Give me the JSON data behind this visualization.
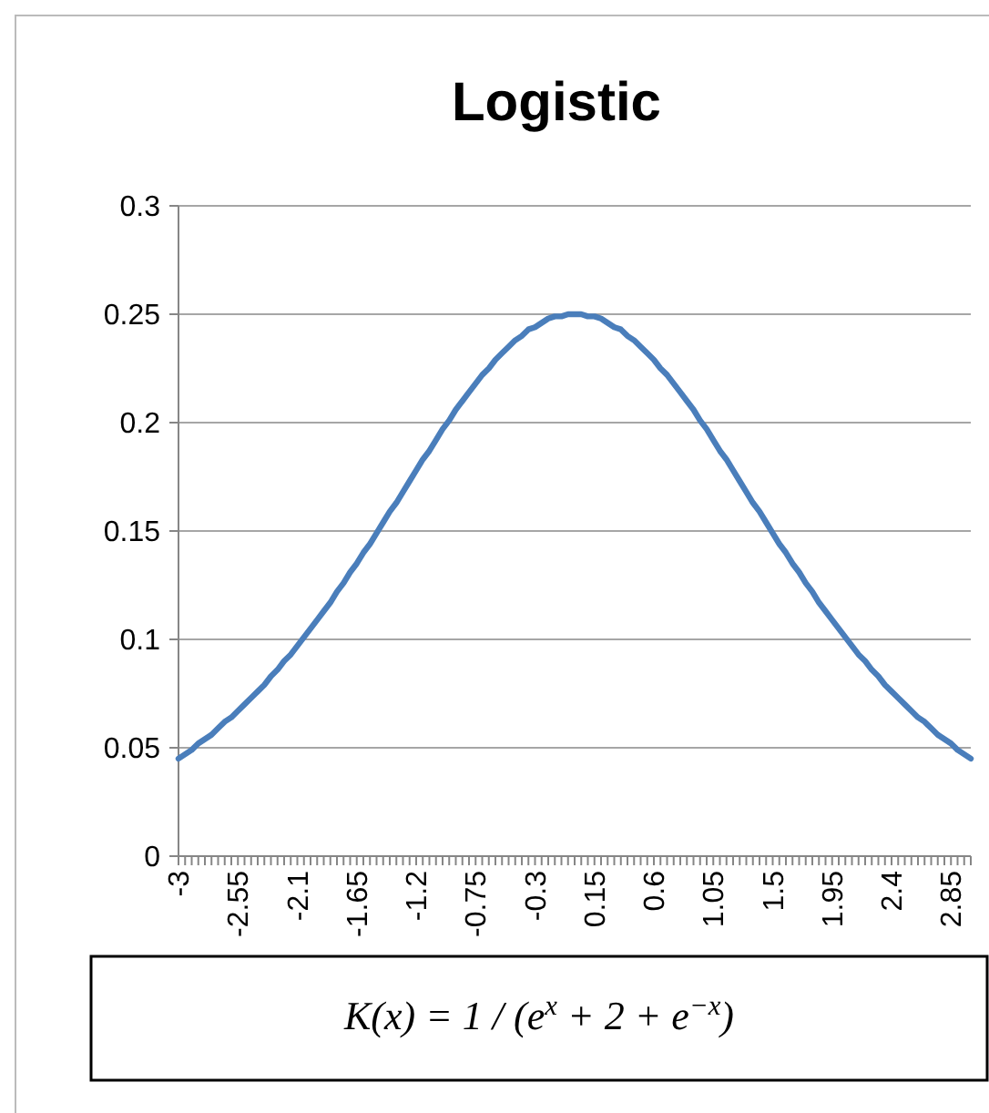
{
  "chart_data": {
    "type": "line",
    "title": "Logistic",
    "categories": [
      "-3",
      null,
      null,
      null,
      null,
      null,
      null,
      null,
      null,
      "-2.55",
      null,
      null,
      null,
      null,
      null,
      null,
      null,
      null,
      "-2.1",
      null,
      null,
      null,
      null,
      null,
      null,
      null,
      null,
      "-1.65",
      null,
      null,
      null,
      null,
      null,
      null,
      null,
      null,
      "-1.2",
      null,
      null,
      null,
      null,
      null,
      null,
      null,
      null,
      "-0.75",
      null,
      null,
      null,
      null,
      null,
      null,
      null,
      null,
      "-0.3",
      null,
      null,
      null,
      null,
      null,
      null,
      null,
      null,
      "0.15",
      null,
      null,
      null,
      null,
      null,
      null,
      null,
      null,
      "0.6",
      null,
      null,
      null,
      null,
      null,
      null,
      null,
      null,
      "1.05",
      null,
      null,
      null,
      null,
      null,
      null,
      null,
      null,
      "1.5",
      null,
      null,
      null,
      null,
      null,
      null,
      null,
      null,
      "1.95",
      null,
      null,
      null,
      null,
      null,
      null,
      null,
      null,
      "2.4",
      null,
      null,
      null,
      null,
      null,
      null,
      null,
      null,
      "2.85",
      null,
      null,
      null
    ],
    "series": [
      {
        "color": "#4a7ebb",
        "values": [
          0.045,
          0.047,
          0.049,
          0.052,
          0.054,
          0.056,
          0.059,
          0.062,
          0.064,
          0.067,
          0.07,
          0.073,
          0.076,
          0.079,
          0.083,
          0.086,
          0.09,
          0.093,
          0.097,
          0.101,
          0.105,
          0.109,
          0.113,
          0.117,
          0.122,
          0.126,
          0.131,
          0.135,
          0.14,
          0.144,
          0.149,
          0.154,
          0.159,
          0.163,
          0.168,
          0.173,
          0.178,
          0.183,
          0.187,
          0.192,
          0.197,
          0.201,
          0.206,
          0.21,
          0.214,
          0.218,
          0.222,
          0.225,
          0.229,
          0.232,
          0.235,
          0.238,
          0.24,
          0.243,
          0.244,
          0.246,
          0.248,
          0.249,
          0.249,
          0.25,
          0.25,
          0.25,
          0.249,
          0.249,
          0.248,
          0.246,
          0.244,
          0.243,
          0.24,
          0.238,
          0.235,
          0.232,
          0.229,
          0.225,
          0.222,
          0.218,
          0.214,
          0.21,
          0.206,
          0.201,
          0.197,
          0.192,
          0.187,
          0.183,
          0.178,
          0.173,
          0.168,
          0.163,
          0.159,
          0.154,
          0.149,
          0.144,
          0.14,
          0.135,
          0.131,
          0.126,
          0.122,
          0.117,
          0.113,
          0.109,
          0.105,
          0.101,
          0.097,
          0.093,
          0.09,
          0.086,
          0.083,
          0.079,
          0.076,
          0.073,
          0.07,
          0.067,
          0.064,
          0.062,
          0.059,
          0.056,
          0.054,
          0.052,
          0.049,
          0.047,
          0.045
        ]
      }
    ],
    "ylim": [
      0,
      0.3
    ],
    "yticks": [
      "0",
      0.05,
      0.1,
      0.15,
      0.2,
      0.25,
      0.3
    ],
    "grid": "y",
    "marker": "none",
    "line_style": "solid",
    "annotations": [
      "K(x) = 1 / (e$^{x}$ + 2 + e$^{−x}$)"
    ]
  }
}
